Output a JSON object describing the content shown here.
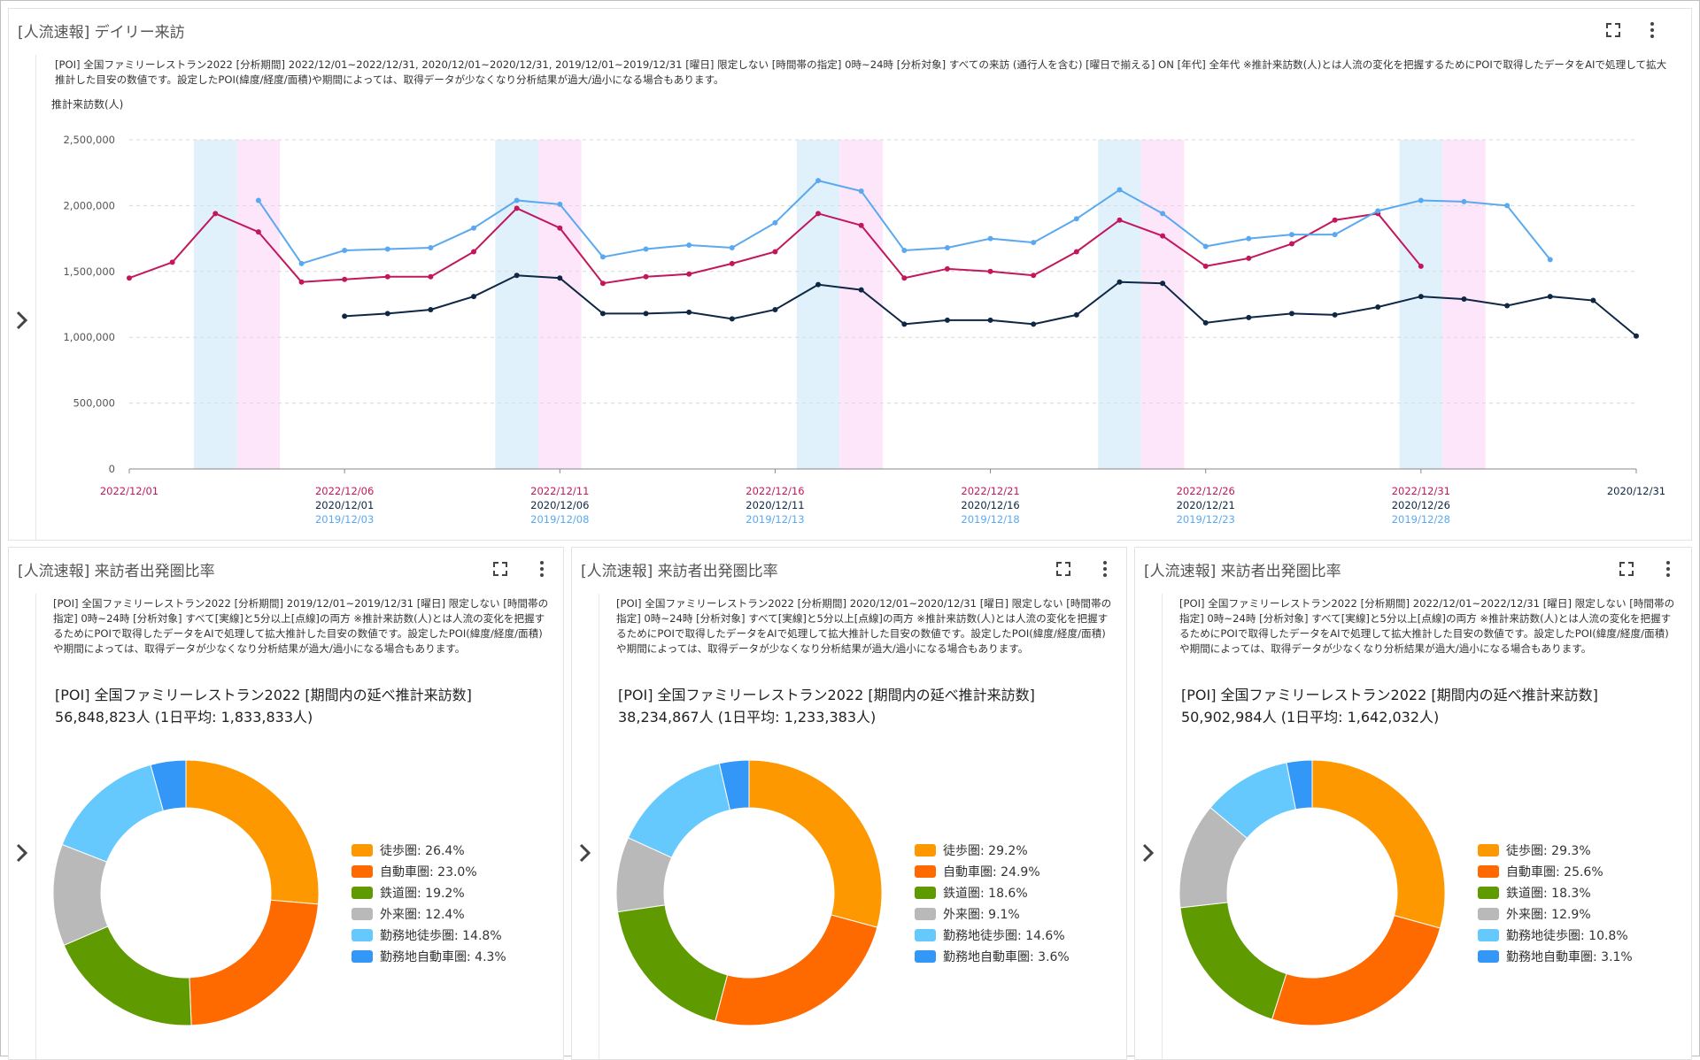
{
  "colors": {
    "y2022": "#c2185b",
    "y2020": "#0d2744",
    "y2019": "#5aa9f0",
    "weekend_blue": "#e0f1fb",
    "weekend_pink": "#fde6fa"
  },
  "top_panel": {
    "title": "[人流速報] デイリー来訪",
    "description": "[POI] 全国ファミリーレストラン2022 [分析期間] 2022/12/01~2022/12/31, 2020/12/01~2020/12/31, 2019/12/01~2019/12/31 [曜日] 限定しない [時間帯の指定] 0時~24時 [分析対象] すべての来訪 (通行人を含む) [曜日で揃える] ON [年代] 全年代 ※推計来訪数(人)とは人流の変化を把握するためにPOIで取得したデータをAIで処理して拡大推計した目安の数値です。設定したPOI(緯度/経度/面積)や期間によっては、取得データが少なくなり分析結果が過大/過小になる場合もあります。"
  },
  "chart_data": [
    {
      "type": "line",
      "title": "[人流速報] デイリー来訪",
      "ylabel": "推計来訪数(人)",
      "ylim": [
        0,
        2500000
      ],
      "yticks": [
        "2,500,000",
        "2,000,000",
        "1,500,000",
        "1,000,000",
        "500,000",
        "0"
      ],
      "ytick_values": [
        2500000,
        2000000,
        1500000,
        1000000,
        500000,
        0
      ],
      "x_index_range": [
        0,
        35
      ],
      "x_tick_labels": [
        {
          "index": 0,
          "rows": [
            {
              "text": "2022/12/01",
              "series": "y2022"
            }
          ]
        },
        {
          "index": 5,
          "rows": [
            {
              "text": "2022/12/06",
              "series": "y2022"
            },
            {
              "text": "2020/12/01",
              "series": "y2020"
            },
            {
              "text": "2019/12/03",
              "series": "y2019"
            }
          ]
        },
        {
          "index": 10,
          "rows": [
            {
              "text": "2022/12/11",
              "series": "y2022"
            },
            {
              "text": "2020/12/06",
              "series": "y2020"
            },
            {
              "text": "2019/12/08",
              "series": "y2019"
            }
          ]
        },
        {
          "index": 15,
          "rows": [
            {
              "text": "2022/12/16",
              "series": "y2022"
            },
            {
              "text": "2020/12/11",
              "series": "y2020"
            },
            {
              "text": "2019/12/13",
              "series": "y2019"
            }
          ]
        },
        {
          "index": 20,
          "rows": [
            {
              "text": "2022/12/21",
              "series": "y2022"
            },
            {
              "text": "2020/12/16",
              "series": "y2020"
            },
            {
              "text": "2019/12/18",
              "series": "y2019"
            }
          ]
        },
        {
          "index": 25,
          "rows": [
            {
              "text": "2022/12/26",
              "series": "y2022"
            },
            {
              "text": "2020/12/21",
              "series": "y2020"
            },
            {
              "text": "2019/12/23",
              "series": "y2019"
            }
          ]
        },
        {
          "index": 30,
          "rows": [
            {
              "text": "2022/12/31",
              "series": "y2022"
            },
            {
              "text": "2020/12/26",
              "series": "y2020"
            },
            {
              "text": "2019/12/28",
              "series": "y2019"
            }
          ]
        },
        {
          "index": 35,
          "rows": [
            {
              "text": "2020/12/31",
              "series": "y2020"
            }
          ]
        }
      ],
      "weekend_bands": [
        {
          "start": 1.5,
          "end": 2.5,
          "kind": "weekend_blue"
        },
        {
          "start": 2.5,
          "end": 3.5,
          "kind": "weekend_pink"
        },
        {
          "start": 8.5,
          "end": 9.5,
          "kind": "weekend_blue"
        },
        {
          "start": 9.5,
          "end": 10.5,
          "kind": "weekend_pink"
        },
        {
          "start": 15.5,
          "end": 16.5,
          "kind": "weekend_blue"
        },
        {
          "start": 16.5,
          "end": 17.5,
          "kind": "weekend_pink"
        },
        {
          "start": 22.5,
          "end": 23.5,
          "kind": "weekend_blue"
        },
        {
          "start": 23.5,
          "end": 24.5,
          "kind": "weekend_pink"
        },
        {
          "start": 29.5,
          "end": 30.5,
          "kind": "weekend_blue"
        },
        {
          "start": 30.5,
          "end": 31.5,
          "kind": "weekend_pink"
        }
      ],
      "series": [
        {
          "name": "2022/12/01~2022/12/31",
          "key": "y2022",
          "start_index": 0,
          "values": [
            1450000,
            1570000,
            1940000,
            1800000,
            1420000,
            1440000,
            1460000,
            1460000,
            1650000,
            1980000,
            1830000,
            1410000,
            1460000,
            1480000,
            1560000,
            1650000,
            1940000,
            1850000,
            1450000,
            1520000,
            1500000,
            1470000,
            1650000,
            1890000,
            1770000,
            1540000,
            1600000,
            1710000,
            1890000,
            1940000,
            1540000
          ]
        },
        {
          "name": "2020/12/01~2020/12/31",
          "key": "y2020",
          "start_index": 5,
          "values": [
            1160000,
            1180000,
            1210000,
            1310000,
            1470000,
            1450000,
            1180000,
            1180000,
            1190000,
            1140000,
            1210000,
            1400000,
            1360000,
            1100000,
            1130000,
            1130000,
            1100000,
            1170000,
            1420000,
            1410000,
            1110000,
            1150000,
            1180000,
            1170000,
            1230000,
            1310000,
            1290000,
            1240000,
            1310000,
            1280000,
            1010000
          ]
        },
        {
          "name": "2019/12/01~2019/12/31",
          "key": "y2019",
          "start_index": 3,
          "values": [
            2040000,
            1560000,
            1660000,
            1670000,
            1680000,
            1830000,
            2040000,
            2010000,
            1610000,
            1670000,
            1700000,
            1680000,
            1870000,
            2190000,
            2110000,
            1660000,
            1680000,
            1750000,
            1720000,
            1900000,
            2120000,
            1940000,
            1690000,
            1750000,
            1780000,
            1780000,
            1960000,
            2040000,
            2030000,
            2000000,
            1590000
          ]
        }
      ]
    },
    {
      "type": "pie",
      "title": "[人流速報] 来訪者出発圏比率",
      "categories": [
        "徒歩圏",
        "自動車圏",
        "鉄道圏",
        "外来圏",
        "勤務地徒歩圏",
        "勤務地自動車圏"
      ],
      "values": [
        26.4,
        23.0,
        19.2,
        12.4,
        14.8,
        4.3
      ],
      "legend": [
        "徒歩圏: 26.4%",
        "自動車圏: 23.0%",
        "鉄道圏: 19.2%",
        "外来圏: 12.4%",
        "勤務地徒歩圏: 14.8%",
        "勤務地自動車圏: 4.3%"
      ],
      "colors": [
        "#fe9800",
        "#fe6a00",
        "#5f9a00",
        "#b9b9b9",
        "#65c9fe",
        "#3397f7"
      ]
    },
    {
      "type": "pie",
      "title": "[人流速報] 来訪者出発圏比率",
      "categories": [
        "徒歩圏",
        "自動車圏",
        "鉄道圏",
        "外来圏",
        "勤務地徒歩圏",
        "勤務地自動車圏"
      ],
      "values": [
        29.2,
        24.9,
        18.6,
        9.1,
        14.6,
        3.6
      ],
      "legend": [
        "徒歩圏: 29.2%",
        "自動車圏: 24.9%",
        "鉄道圏: 18.6%",
        "外来圏: 9.1%",
        "勤務地徒歩圏: 14.6%",
        "勤務地自動車圏: 3.6%"
      ],
      "colors": [
        "#fe9800",
        "#fe6a00",
        "#5f9a00",
        "#b9b9b9",
        "#65c9fe",
        "#3397f7"
      ]
    },
    {
      "type": "pie",
      "title": "[人流速報] 来訪者出発圏比率",
      "categories": [
        "徒歩圏",
        "自動車圏",
        "鉄道圏",
        "外来圏",
        "勤務地徒歩圏",
        "勤務地自動車圏"
      ],
      "values": [
        29.3,
        25.6,
        18.3,
        12.9,
        10.8,
        3.1
      ],
      "legend": [
        "徒歩圏: 29.3%",
        "自動車圏: 25.6%",
        "鉄道圏: 18.3%",
        "外来圏: 12.9%",
        "勤務地徒歩圏: 10.8%",
        "勤務地自動車圏: 3.1%"
      ],
      "colors": [
        "#fe9800",
        "#fe6a00",
        "#5f9a00",
        "#b9b9b9",
        "#65c9fe",
        "#3397f7"
      ]
    }
  ],
  "panels": [
    {
      "title": "[人流速報] 来訪者出発圏比率",
      "description": "[POI] 全国ファミリーレストラン2022 [分析期間] 2019/12/01~2019/12/31 [曜日] 限定しない [時間帯の指定] 0時~24時 [分析対象] すべて[実線]と5分以上[点線]の両方 ※推計来訪数(人)とは人流の変化を把握するためにPOIで取得したデータをAIで処理して拡大推計した目安の数値です。設定したPOI(緯度/経度/面積)や期間によっては、取得データが少なくなり分析結果が過大/過小になる場合もあります。",
      "summary_title": "[POI] 全国ファミリーレストラン2022 [期間内の延べ推計来訪数]",
      "summary_value": "56,848,823人 (1日平均: 1,833,833人)"
    },
    {
      "title": "[人流速報] 来訪者出発圏比率",
      "description": "[POI] 全国ファミリーレストラン2022 [分析期間] 2020/12/01~2020/12/31 [曜日] 限定しない [時間帯の指定] 0時~24時 [分析対象] すべて[実線]と5分以上[点線]の両方 ※推計来訪数(人)とは人流の変化を把握するためにPOIで取得したデータをAIで処理して拡大推計した目安の数値です。設定したPOI(緯度/経度/面積)や期間によっては、取得データが少なくなり分析結果が過大/過小になる場合もあります。",
      "summary_title": "[POI] 全国ファミリーレストラン2022 [期間内の延べ推計来訪数]",
      "summary_value": "38,234,867人 (1日平均: 1,233,383人)"
    },
    {
      "title": "[人流速報] 来訪者出発圏比率",
      "description": "[POI] 全国ファミリーレストラン2022 [分析期間] 2022/12/01~2022/12/31 [曜日] 限定しない [時間帯の指定] 0時~24時 [分析対象] すべて[実線]と5分以上[点線]の両方 ※推計来訪数(人)とは人流の変化を把握するためにPOIで取得したデータをAIで処理して拡大推計した目安の数値です。設定したPOI(緯度/経度/面積)や期間によっては、取得データが少なくなり分析結果が過大/過小になる場合もあります。",
      "summary_title": "[POI] 全国ファミリーレストラン2022 [期間内の延べ推計来訪数]",
      "summary_value": "50,902,984人 (1日平均: 1,642,032人)"
    }
  ],
  "icons": {
    "expand": "fullscreen-icon",
    "menu": "more-vert-icon",
    "toggle": "chevron-right-icon"
  }
}
